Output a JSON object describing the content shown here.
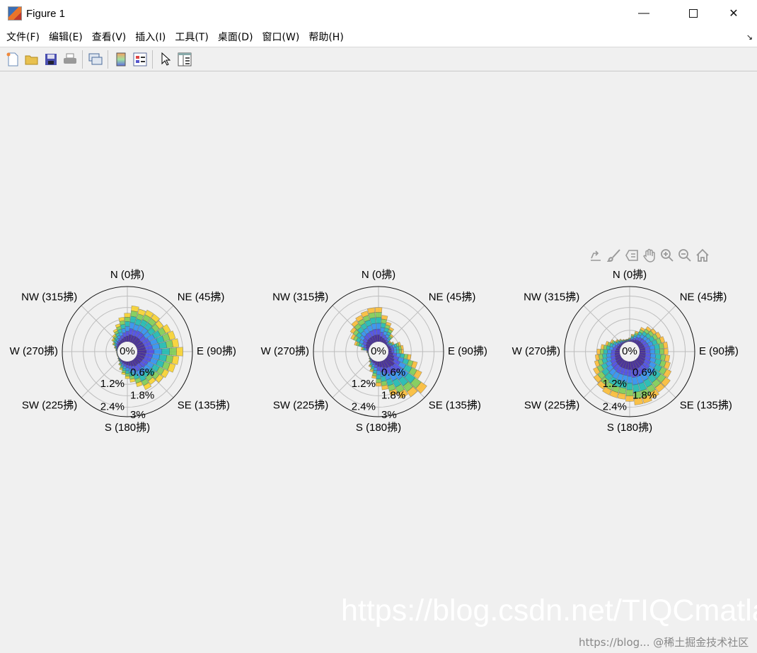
{
  "window": {
    "title": "Figure 1",
    "controls": [
      "minimize",
      "maximize",
      "close"
    ]
  },
  "menu": [
    "文件(F)",
    "编辑(E)",
    "查看(V)",
    "插入(I)",
    "工具(T)",
    "桌面(D)",
    "窗口(W)",
    "帮助(H)"
  ],
  "toolbar": [
    "new-figure",
    "open-file",
    "save",
    "print",
    "link-plot",
    "insert-colorbar",
    "insert-legend",
    "edit-plot",
    "property-inspector"
  ],
  "axes_toolbar": [
    "export",
    "brush",
    "data-tips",
    "pan",
    "zoom-in",
    "zoom-out",
    "restore-view"
  ],
  "watermark": {
    "main": "https://blog.csdn.net/TIQCmatlab",
    "secondary": "https://blog... @稀土掘金技术社区"
  },
  "chart_data": [
    {
      "type": "polar-stacked-bar",
      "center_label": "0%",
      "compass_labels": [
        "N (0拂)",
        "NE (45拂)",
        "E (90拂)",
        "SE (135拂)",
        "S (180拂)",
        "SW (225拂)",
        "W (270拂)",
        "NW (315拂)"
      ],
      "radial_ticks": [
        "0.6%",
        "1.2%",
        "1.8%",
        "2.4%",
        "3%"
      ],
      "radial_values": [
        0.6,
        1.2,
        1.8,
        2.4,
        3
      ],
      "rlim": [
        0,
        2.9
      ],
      "directions_deg": [
        0,
        10,
        20,
        30,
        40,
        50,
        60,
        70,
        80,
        90,
        100,
        110,
        120,
        130,
        140,
        150,
        160,
        170,
        180,
        190,
        200,
        210,
        220,
        230,
        240,
        250,
        260,
        270,
        280,
        290,
        300,
        310,
        320,
        330,
        340,
        350
      ],
      "totals_percent": [
        1.5,
        1.9,
        1.8,
        1.9,
        1.9,
        1.8,
        2.0,
        2.1,
        2.2,
        2.4,
        2.2,
        2.1,
        1.9,
        1.8,
        1.6,
        1.7,
        1.4,
        1.1,
        0.9,
        0.7,
        0.5,
        0.3,
        0.15,
        0.1,
        0.05,
        0.05,
        0.05,
        0.05,
        0.1,
        0.2,
        0.35,
        0.5,
        0.6,
        0.8,
        1.0,
        1.3
      ],
      "class_shares": [
        0.2,
        0.17,
        0.17,
        0.17,
        0.15,
        0.14
      ],
      "class_colors": [
        "#3a1e96",
        "#4747e2",
        "#2b8eee",
        "#1cb8ae",
        "#7dcb52",
        "#f7d12e"
      ]
    },
    {
      "type": "polar-stacked-bar",
      "center_label": "0%",
      "compass_labels": [
        "N (0拂)",
        "NE (45拂)",
        "E (90拂)",
        "SE (135拂)",
        "S (180拂)",
        "SW (225拂)",
        "W (270拂)",
        "NW (315拂)"
      ],
      "radial_ticks": [
        "0.6%",
        "1.2%",
        "1.8%",
        "2.4%",
        "3%"
      ],
      "radial_values": [
        0.6,
        1.2,
        1.8,
        2.4,
        3
      ],
      "rlim": [
        0,
        2.9
      ],
      "directions_deg": [
        0,
        10,
        20,
        30,
        40,
        50,
        60,
        70,
        80,
        90,
        100,
        110,
        120,
        130,
        140,
        150,
        160,
        170,
        180,
        190,
        200,
        210,
        220,
        230,
        240,
        250,
        260,
        270,
        280,
        290,
        300,
        310,
        320,
        330,
        340,
        350
      ],
      "totals_percent": [
        1.8,
        1.4,
        1.1,
        0.9,
        0.6,
        0.3,
        0.4,
        0.7,
        0.8,
        0.8,
        1.2,
        1.6,
        2.0,
        2.6,
        2.4,
        2.2,
        1.9,
        1.5,
        1.3,
        0.9,
        0.6,
        0.4,
        0.2,
        0.1,
        0.05,
        0.05,
        0.05,
        0.1,
        0.4,
        0.8,
        1.1,
        1.3,
        1.5,
        1.6,
        1.7,
        1.8
      ],
      "class_shares": [
        0.2,
        0.17,
        0.17,
        0.17,
        0.15,
        0.14
      ],
      "class_colors": [
        "#3a1e96",
        "#4747e2",
        "#2b8eee",
        "#1cb8ae",
        "#7dcb52",
        "#f9bb35"
      ]
    },
    {
      "type": "polar-stacked-bar",
      "center_label": "0%",
      "compass_labels": [
        "N (0拂)",
        "NE (45拂)",
        "E (90拂)",
        "SE (135拂)",
        "S (180拂)",
        "SW (225拂)",
        "W (270拂)",
        "NW (315拂)"
      ],
      "radial_ticks": [
        "0.6%",
        "1.2%",
        "1.8%",
        "2.4%"
      ],
      "radial_values": [
        0.6,
        1.2,
        1.8,
        2.4
      ],
      "rlim": [
        0,
        2.9
      ],
      "directions_deg": [
        0,
        10,
        20,
        30,
        40,
        50,
        60,
        70,
        80,
        90,
        100,
        110,
        120,
        130,
        140,
        150,
        160,
        170,
        180,
        190,
        200,
        210,
        220,
        230,
        240,
        250,
        260,
        270,
        280,
        290,
        300,
        310,
        320,
        330,
        340,
        350
      ],
      "totals_percent": [
        0.2,
        0.4,
        0.6,
        0.9,
        1.1,
        1.2,
        1.3,
        1.4,
        1.5,
        1.5,
        1.6,
        1.7,
        1.9,
        2.1,
        2.1,
        2.2,
        2.3,
        2.3,
        2.1,
        2.0,
        2.0,
        2.0,
        1.9,
        1.8,
        1.6,
        1.4,
        1.3,
        1.2,
        1.0,
        0.8,
        0.6,
        0.4,
        0.3,
        0.2,
        0.15,
        0.15
      ],
      "class_shares": [
        0.2,
        0.17,
        0.17,
        0.17,
        0.15,
        0.14
      ],
      "class_colors": [
        "#3a1e96",
        "#4747e2",
        "#2b8eee",
        "#1cb8ae",
        "#7dcb52",
        "#f9bb35"
      ]
    }
  ]
}
